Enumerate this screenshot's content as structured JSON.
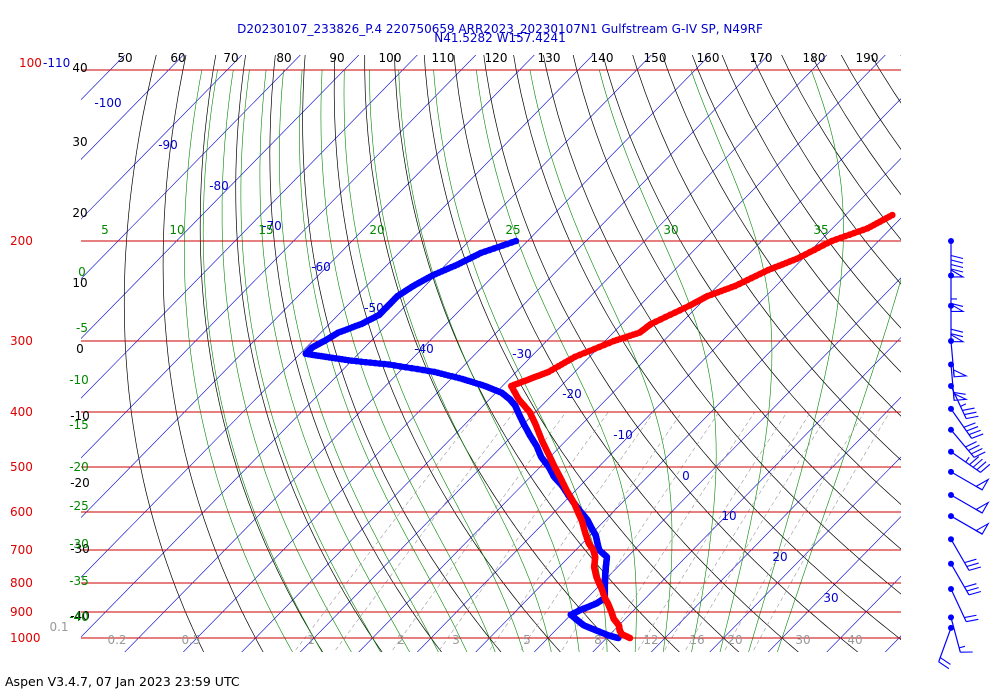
{
  "header": {
    "title_line1": "D20230107_233826_P.4 220750659 ARR2023_20230107N1 Gulfstream G-IV SP, N49RF",
    "title_line2": "N41.5282 W157.4241"
  },
  "footer": {
    "version": "Aspen V3.4.7, 07 Jan 2023  23:59 UTC"
  },
  "colors": {
    "temperature": "#ff0000",
    "dewpoint": "#0000ff",
    "isobar": "#cc0000",
    "isotherm": "#0000cc",
    "dry_adiabat": "#000000",
    "moist_adiabat": "#008800",
    "mixing_ratio": "#999999"
  },
  "chart_data": {
    "type": "skew-t",
    "pressure_labels": [
      "100",
      "200",
      "300",
      "400",
      "500",
      "600",
      "700",
      "800",
      "900",
      "1000"
    ],
    "top_left_label": "-110",
    "theta_top_labels": [
      "50",
      "60",
      "70",
      "80",
      "90",
      "100",
      "110",
      "120",
      "130",
      "140",
      "150",
      "160",
      "170",
      "180",
      "190"
    ],
    "theta_left_labels": [
      "40",
      "30",
      "20",
      "10",
      "0",
      "-10",
      "-20",
      "-30",
      "-40"
    ],
    "isotherm_labels": [
      "-100",
      "-90",
      "-80",
      "-70",
      "-60",
      "-50",
      "-40",
      "-30",
      "-20",
      "-10",
      "0",
      "10",
      "20",
      "30"
    ],
    "moist_top_labels": [
      "5",
      "10",
      "15",
      "20",
      "25",
      "30",
      "35"
    ],
    "moist_left_labels": [
      "0",
      "-5",
      "-10",
      "-15",
      "-20",
      "-25",
      "-30",
      "-35",
      "-40"
    ],
    "mixing_labels": [
      "0.1",
      "0.2",
      "0.5",
      "1",
      "2",
      "3",
      "5",
      "8",
      "12",
      "16",
      "20",
      "30",
      "40"
    ],
    "temperature": {
      "p": [
        1000,
        985,
        970,
        950,
        925,
        900,
        870,
        850,
        820,
        800,
        780,
        750,
        720,
        700,
        680,
        650,
        620,
        600,
        580,
        550,
        520,
        500,
        480,
        450,
        420,
        400,
        380,
        360,
        350,
        340,
        320,
        300,
        290,
        280,
        260,
        250,
        240,
        225,
        215,
        200,
        190,
        180
      ],
      "t": [
        14,
        12,
        11,
        10,
        8,
        6.5,
        4.5,
        3,
        1,
        -0.5,
        -2,
        -4,
        -5.5,
        -7,
        -9,
        -11.5,
        -14,
        -16,
        -18,
        -21.5,
        -25,
        -27.5,
        -30,
        -34,
        -38,
        -41,
        -45,
        -48.5,
        -46.5,
        -44.5,
        -42.5,
        -38.5,
        -35.5,
        -35,
        -31.5,
        -30,
        -27,
        -24,
        -21,
        -18,
        -14,
        -12
      ]
    },
    "dewpoint": {
      "p": [
        1000,
        990,
        970,
        950,
        930,
        910,
        890,
        870,
        850,
        830,
        810,
        790,
        770,
        750,
        720,
        700,
        680,
        660,
        640,
        620,
        600,
        580,
        560,
        540,
        520,
        500,
        480,
        460,
        440,
        420,
        400,
        390,
        380,
        370,
        360,
        350,
        340,
        330,
        325,
        320,
        316,
        312,
        308,
        300,
        290,
        280,
        270,
        260,
        250,
        240,
        230,
        220,
        210,
        200
      ],
      "td": [
        12,
        10,
        7,
        4,
        2,
        0,
        1,
        2.5,
        3,
        2,
        1,
        0,
        -1,
        -2,
        -3.5,
        -6,
        -7.5,
        -9,
        -11,
        -13,
        -15.5,
        -18,
        -20.5,
        -23,
        -26,
        -28.5,
        -31.5,
        -34,
        -37,
        -40,
        -43,
        -44.5,
        -46.5,
        -49,
        -53,
        -58,
        -64,
        -73,
        -80,
        -85,
        -89,
        -89,
        -89,
        -88,
        -87,
        -84.5,
        -83,
        -83,
        -83,
        -82,
        -80.5,
        -78,
        -76,
        -72
      ]
    },
    "wind_barbs": [
      {
        "p": 200,
        "speed_kt": 90
      },
      {
        "p": 230,
        "speed_kt": 65
      },
      {
        "p": 260,
        "speed_kt": 70
      },
      {
        "p": 300,
        "speed_kt": 50
      },
      {
        "p": 330,
        "speed_kt": 60
      },
      {
        "p": 360,
        "speed_kt": 35
      },
      {
        "p": 395,
        "speed_kt": 40
      },
      {
        "p": 430,
        "speed_kt": 40
      },
      {
        "p": 470,
        "speed_kt": 45
      },
      {
        "p": 510,
        "speed_kt": 50
      },
      {
        "p": 560,
        "speed_kt": 50
      },
      {
        "p": 610,
        "speed_kt": 50
      },
      {
        "p": 670,
        "speed_kt": 30
      },
      {
        "p": 740,
        "speed_kt": 30
      },
      {
        "p": 820,
        "speed_kt": 20
      },
      {
        "p": 920,
        "speed_kt": 15
      },
      {
        "p": 960,
        "speed_kt": 20
      }
    ]
  }
}
